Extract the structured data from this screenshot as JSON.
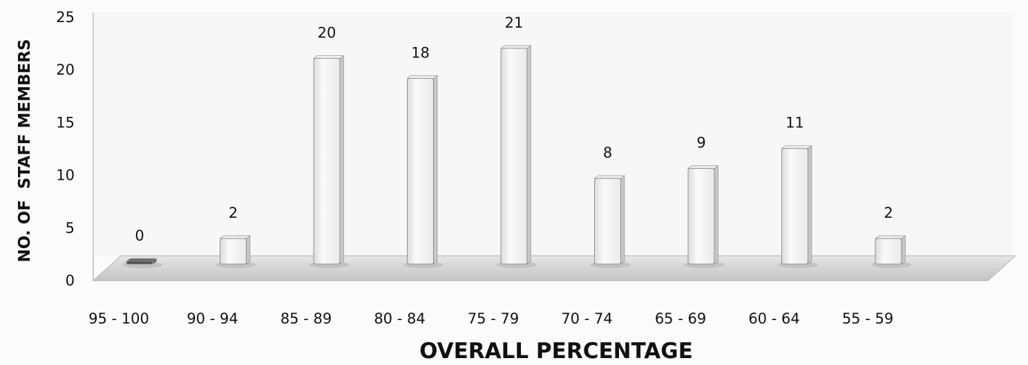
{
  "chart_data": {
    "type": "bar",
    "title": "",
    "xlabel": "OVERALL PERCENTAGE",
    "ylabel": "NO. OF  STAFF MEMBERS",
    "categories": [
      "95 - 100",
      "90 - 94",
      "85 - 89",
      "80 - 84",
      "75 - 79",
      "70 - 74",
      "65 - 69",
      "60 - 64",
      "55 - 59"
    ],
    "values": [
      0,
      2,
      20,
      18,
      21,
      8,
      9,
      11,
      2
    ],
    "ylim": [
      0,
      25
    ],
    "yticks": [
      0,
      5,
      10,
      15,
      20,
      25
    ],
    "grid": false,
    "legend": "none",
    "colors": {
      "bar_front": "#f4f4f4",
      "bar_side": "#c9c9c9",
      "floor": "#d2d2d2"
    }
  }
}
